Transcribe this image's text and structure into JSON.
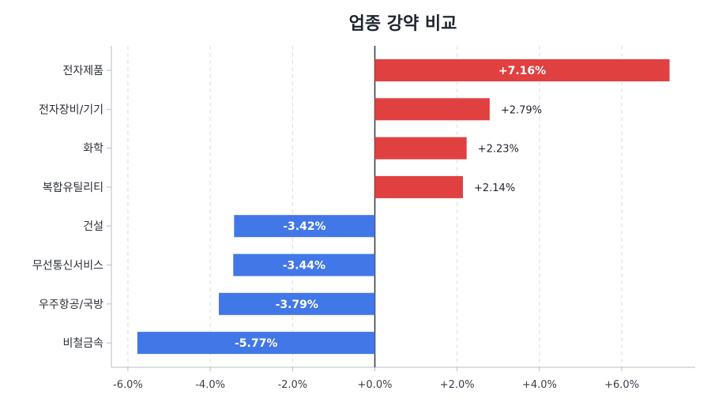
{
  "chart_data": {
    "type": "bar",
    "orientation": "horizontal",
    "title": "업종 강약 비교",
    "xlabel": "",
    "ylabel": "",
    "xlim": [
      -6.6,
      7.9
    ],
    "grid": "vertical dashed",
    "x_ticks": [
      -6,
      -4,
      -2,
      0,
      2,
      4,
      6
    ],
    "x_tick_labels": [
      "-6.0%",
      "-4.0%",
      "-2.0%",
      "+0.0%",
      "+2.0%",
      "+4.0%",
      "+6.0%"
    ],
    "categories": [
      "전자제품",
      "전자장비/기기",
      "화학",
      "복합유틸리티",
      "건설",
      "무선통신서비스",
      "우주항공/국방",
      "비철금속"
    ],
    "values": [
      7.16,
      2.79,
      2.23,
      2.14,
      -3.42,
      -3.44,
      -3.79,
      -5.77
    ],
    "value_labels": [
      "+7.16%",
      "+2.79%",
      "+2.23%",
      "+2.14%",
      "-3.42%",
      "-3.44%",
      "-3.79%",
      "-5.77%"
    ],
    "colors": {
      "positive": "#e04040",
      "negative": "#4277e8",
      "zero_line": "#3a3f4a",
      "grid": "#d9dce2",
      "axis": "#b9bdc5"
    }
  }
}
